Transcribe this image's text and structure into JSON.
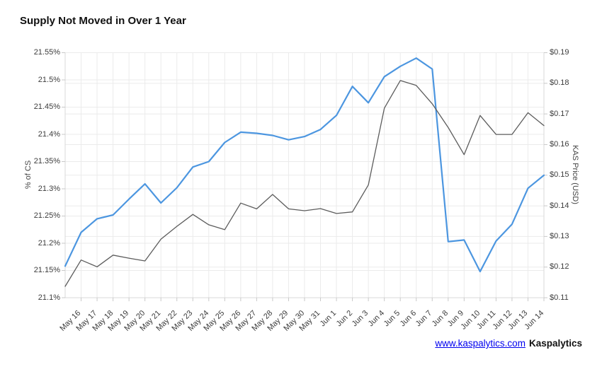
{
  "page": {
    "title": "Supply Not Moved in Over 1 Year"
  },
  "footer": {
    "link_text": "www.kaspalytics.com",
    "brand_text": "Kaspalytics",
    "link_color": "#0000ee"
  },
  "colors": {
    "grid": "#ebebeb",
    "axis_line": "#d8d8d8",
    "tick_mark": "#c9c9c9",
    "background": "#ffffff"
  },
  "chart_data": {
    "type": "line",
    "title": "Supply Not Moved in Over 1 Year",
    "categories": [
      "May 16",
      "May 17",
      "May 18",
      "May 19",
      "May 20",
      "May 21",
      "May 22",
      "May 23",
      "May 24",
      "May 25",
      "May 26",
      "May 27",
      "May 28",
      "May 29",
      "May 30",
      "May 31",
      "Jun 1",
      "Jun 2",
      "Jun 3",
      "Jun 4",
      "Jun 5",
      "Jun 6",
      "Jun 7",
      "Jun 8",
      "Jun 9",
      "Jun 10",
      "Jun 11",
      "Jun 12",
      "Jun 13",
      "Jun 14"
    ],
    "left_axis": {
      "label": "% of CS",
      "range": [
        21.1,
        21.55
      ],
      "tick_labels": [
        "21.55%",
        "21.5%",
        "21.45%",
        "21.4%",
        "21.35%",
        "21.3%",
        "21.25%",
        "21.2%",
        "21.15%",
        "21.1%"
      ]
    },
    "right_axis": {
      "label": "KAS Price (USD)",
      "range": [
        0.11,
        0.19
      ],
      "tick_labels": [
        "$0.19",
        "$0.18",
        "$0.17",
        "$0.16",
        "$0.15",
        "$0.14",
        "$0.13",
        "$0.12",
        "$0.11"
      ]
    },
    "grid": true,
    "legend": false,
    "x_axis_note": "both lines start at the plot left edge one unlabeled day before May 16",
    "series": [
      {
        "name": "% of CS",
        "axis": "left",
        "color": "#4c96e0",
        "stroke_width": 2.2,
        "edge_start": 21.158,
        "values": [
          21.22,
          21.245,
          21.252,
          21.281,
          21.309,
          21.274,
          21.302,
          21.34,
          21.35,
          21.385,
          21.404,
          21.402,
          21.398,
          21.39,
          21.396,
          21.409,
          21.435,
          21.488,
          21.458,
          21.506,
          21.525,
          21.54,
          21.52,
          21.203,
          21.206,
          21.148,
          21.204,
          21.235,
          21.301,
          21.325
        ]
      },
      {
        "name": "KAS Price (USD)",
        "axis": "right",
        "color": "#5c5c5c",
        "stroke_width": 1.3,
        "edge_start": 0.1137,
        "values": [
          0.1223,
          0.1201,
          0.1239,
          0.1229,
          0.122,
          0.1291,
          0.1333,
          0.1372,
          0.1338,
          0.1322,
          0.1409,
          0.139,
          0.1437,
          0.139,
          0.1384,
          0.1391,
          0.1375,
          0.138,
          0.1468,
          0.1719,
          0.1809,
          0.1793,
          0.1733,
          0.1656,
          0.1567,
          0.1695,
          0.1633,
          0.1633,
          0.1704,
          0.1662
        ]
      }
    ]
  }
}
